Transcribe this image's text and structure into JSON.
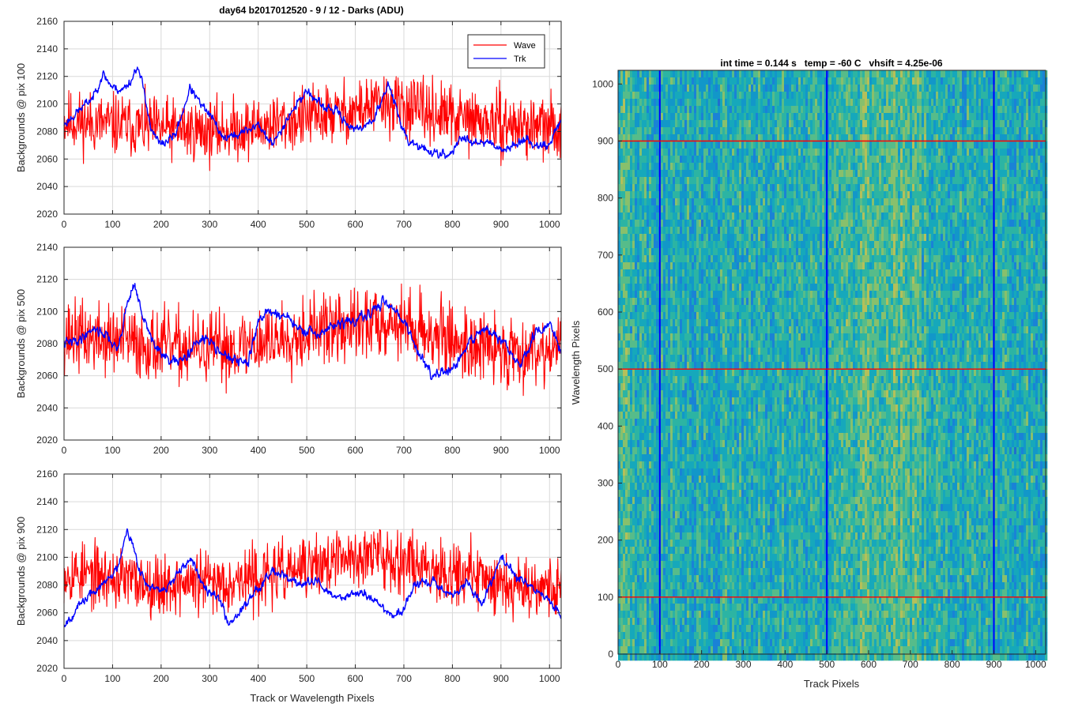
{
  "figure_title": "day64 b2017012520 - 9 / 12 - Darks (ADU)",
  "colors": {
    "wave": "#ff0000",
    "trk": "#0000ff",
    "grid": "#d9d9d9",
    "axis": "#262626"
  },
  "chart_data": [
    {
      "type": "line",
      "title": "day64 b2017012520 - 9 / 12 - Darks (ADU)",
      "xlabel": "",
      "ylabel": "Backgrounds @ pix 100",
      "xlim": [
        0,
        1024
      ],
      "ylim": [
        2020,
        2160
      ],
      "xticks": [
        0,
        100,
        200,
        300,
        400,
        500,
        600,
        700,
        800,
        900,
        1000
      ],
      "yticks": [
        2020,
        2040,
        2060,
        2080,
        2100,
        2120,
        2140,
        2160
      ],
      "grid": true,
      "legend": "top-right",
      "series": [
        {
          "name": "Wave",
          "color": "#ff0000",
          "noise": 22,
          "seed": 11,
          "x": [
            0,
            100,
            200,
            300,
            400,
            500,
            600,
            650,
            700,
            800,
            900,
            1024
          ],
          "y": [
            2088,
            2085,
            2082,
            2080,
            2083,
            2090,
            2095,
            2100,
            2098,
            2090,
            2085,
            2082
          ]
        },
        {
          "name": "Trk",
          "color": "#0000ff",
          "noise": 6,
          "seed": 23,
          "x": [
            0,
            30,
            60,
            80,
            100,
            120,
            140,
            150,
            165,
            180,
            200,
            230,
            260,
            280,
            300,
            330,
            360,
            400,
            430,
            460,
            500,
            530,
            560,
            600,
            640,
            670,
            690,
            710,
            750,
            790,
            820,
            850,
            880,
            910,
            940,
            970,
            1000,
            1024
          ],
          "y": [
            2085,
            2095,
            2105,
            2122,
            2112,
            2110,
            2118,
            2128,
            2110,
            2080,
            2070,
            2078,
            2112,
            2100,
            2092,
            2075,
            2078,
            2085,
            2070,
            2090,
            2110,
            2098,
            2095,
            2080,
            2090,
            2115,
            2090,
            2072,
            2066,
            2062,
            2075,
            2073,
            2072,
            2066,
            2074,
            2071,
            2070,
            2090
          ]
        }
      ]
    },
    {
      "type": "line",
      "title": "",
      "xlabel": "",
      "ylabel": "Backgrounds @ pix 500",
      "xlim": [
        0,
        1024
      ],
      "ylim": [
        2020,
        2140
      ],
      "xticks": [
        0,
        100,
        200,
        300,
        400,
        500,
        600,
        700,
        800,
        900,
        1000
      ],
      "yticks": [
        2020,
        2040,
        2060,
        2080,
        2100,
        2120,
        2140
      ],
      "grid": true,
      "legend": "none",
      "series": [
        {
          "name": "Wave",
          "color": "#ff0000",
          "noise": 22,
          "seed": 37,
          "x": [
            0,
            100,
            200,
            300,
            400,
            500,
            600,
            650,
            700,
            800,
            900,
            1024
          ],
          "y": [
            2085,
            2082,
            2078,
            2076,
            2080,
            2088,
            2090,
            2095,
            2092,
            2082,
            2075,
            2078
          ]
        },
        {
          "name": "Trk",
          "color": "#0000ff",
          "noise": 6,
          "seed": 41,
          "x": [
            0,
            30,
            60,
            90,
            110,
            130,
            145,
            160,
            185,
            210,
            240,
            270,
            300,
            340,
            380,
            400,
            420,
            450,
            490,
            520,
            560,
            600,
            640,
            660,
            700,
            720,
            760,
            800,
            830,
            860,
            900,
            940,
            970,
            1000,
            1024
          ],
          "y": [
            2080,
            2082,
            2090,
            2085,
            2075,
            2105,
            2118,
            2098,
            2080,
            2070,
            2068,
            2080,
            2083,
            2070,
            2068,
            2095,
            2100,
            2098,
            2088,
            2085,
            2092,
            2094,
            2100,
            2108,
            2095,
            2080,
            2060,
            2063,
            2078,
            2090,
            2082,
            2066,
            2086,
            2092,
            2075
          ]
        }
      ]
    },
    {
      "type": "line",
      "title": "",
      "xlabel": "Track or Wavelength Pixels",
      "ylabel": "Backgrounds @ pix 900",
      "xlim": [
        0,
        1024
      ],
      "ylim": [
        2020,
        2160
      ],
      "xticks": [
        0,
        100,
        200,
        300,
        400,
        500,
        600,
        700,
        800,
        900,
        1000
      ],
      "yticks": [
        2020,
        2040,
        2060,
        2080,
        2100,
        2120,
        2140,
        2160
      ],
      "grid": true,
      "legend": "none",
      "series": [
        {
          "name": "Wave",
          "color": "#ff0000",
          "noise": 22,
          "seed": 53,
          "x": [
            0,
            100,
            200,
            300,
            400,
            500,
            600,
            650,
            700,
            800,
            900,
            1024
          ],
          "y": [
            2090,
            2085,
            2080,
            2082,
            2085,
            2092,
            2100,
            2102,
            2098,
            2090,
            2082,
            2078
          ]
        },
        {
          "name": "Trk",
          "color": "#0000ff",
          "noise": 6,
          "seed": 67,
          "x": [
            0,
            20,
            50,
            80,
            110,
            130,
            150,
            170,
            200,
            230,
            260,
            290,
            320,
            340,
            370,
            400,
            430,
            460,
            490,
            520,
            560,
            600,
            640,
            660,
            680,
            700,
            720,
            760,
            800,
            830,
            860,
            900,
            930,
            960,
            1000,
            1024
          ],
          "y": [
            2052,
            2060,
            2072,
            2080,
            2092,
            2122,
            2098,
            2080,
            2075,
            2085,
            2098,
            2080,
            2070,
            2052,
            2065,
            2078,
            2092,
            2085,
            2080,
            2083,
            2070,
            2075,
            2070,
            2062,
            2058,
            2062,
            2080,
            2082,
            2072,
            2082,
            2066,
            2100,
            2086,
            2080,
            2068,
            2058
          ]
        }
      ]
    },
    {
      "type": "heatmap",
      "title": "int time = 0.144 s   temp = -60 C   vhsift = 4.25e-06",
      "xlabel": "Track Pixels",
      "ylabel": "Wavelength Pixels",
      "xlim": [
        0,
        1024
      ],
      "ylim": [
        0,
        1024
      ],
      "xticks": [
        0,
        100,
        200,
        300,
        400,
        500,
        600,
        700,
        800,
        900,
        1000
      ],
      "yticks": [
        0,
        100,
        200,
        300,
        400,
        500,
        600,
        700,
        800,
        900,
        1000
      ],
      "colormap": "parula",
      "vertical_lines": [
        100,
        500,
        900
      ],
      "vertical_line_color": "#0000ff",
      "horizontal_lines": [
        100,
        500,
        900
      ],
      "horizontal_line_color": "#ff0000"
    }
  ]
}
